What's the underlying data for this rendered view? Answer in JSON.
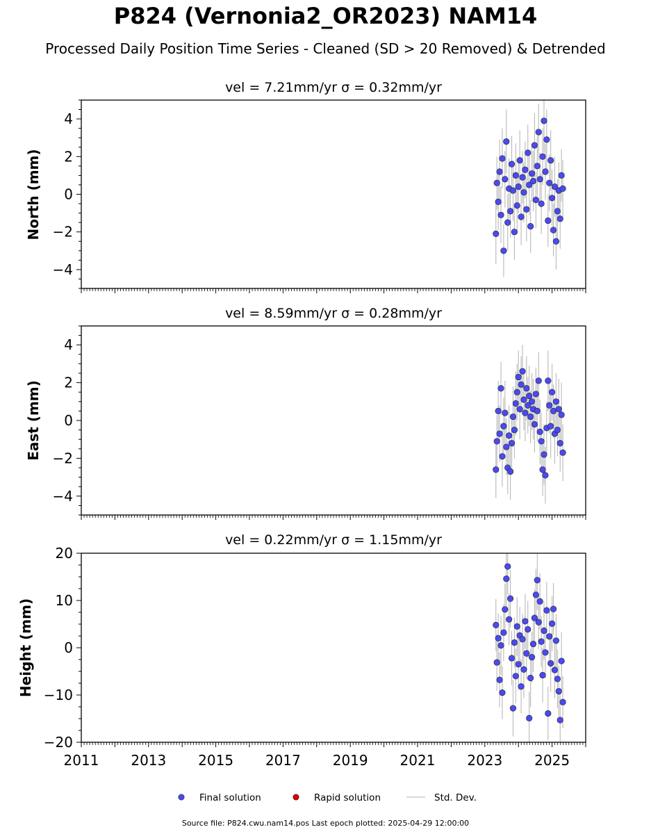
{
  "title": "P824 (Vernonia2_OR2023) NAM14",
  "subtitle": "Processed Daily Position Time Series - Cleaned (SD > 20 Removed) & Detrended",
  "footer": "Source file: P824.cwu.nam14.pos  Last epoch plotted: 2025-04-29 12:00:00",
  "legend": {
    "final": "Final solution",
    "rapid": "Rapid solution",
    "stddev": "Std. Dev."
  },
  "colors": {
    "final": "#4a4af0",
    "rapid": "#dd0000",
    "stddev": "#9a9a9a"
  },
  "chart_data": [
    {
      "type": "scatter",
      "title": "vel = 7.21mm/yr   σ = 0.32mm/yr",
      "ylabel": "North (mm)",
      "xlim": [
        2011,
        2026
      ],
      "ylim": [
        -5,
        5
      ],
      "yticks": [
        -4,
        -2,
        0,
        2,
        4
      ],
      "ytick_labels": [
        "−4",
        "−2",
        "0",
        "2",
        "4"
      ],
      "x_tick_labels_shown": false,
      "series": [
        {
          "kind": "final",
          "x": [
            2023.33,
            2023.36,
            2023.4,
            2023.44,
            2023.48,
            2023.52,
            2023.56,
            2023.6,
            2023.64,
            2023.68,
            2023.72,
            2023.76,
            2023.8,
            2023.84,
            2023.88,
            2023.92,
            2023.96,
            2024.0,
            2024.04,
            2024.08,
            2024.12,
            2024.16,
            2024.2,
            2024.24,
            2024.28,
            2024.32,
            2024.36,
            2024.4,
            2024.44,
            2024.48,
            2024.52,
            2024.56,
            2024.6,
            2024.64,
            2024.68,
            2024.72,
            2024.76,
            2024.8,
            2024.84,
            2024.88,
            2024.92,
            2024.96,
            2025.0,
            2025.04,
            2025.08,
            2025.12,
            2025.16,
            2025.2,
            2025.24,
            2025.28,
            2025.32
          ],
          "y": [
            -2.1,
            0.6,
            -0.4,
            1.2,
            -1.1,
            1.9,
            -3.0,
            0.8,
            2.8,
            -1.5,
            0.3,
            -0.9,
            1.6,
            0.2,
            -2.0,
            1.0,
            -0.6,
            0.4,
            1.8,
            -1.2,
            0.9,
            0.1,
            1.3,
            -0.8,
            2.2,
            0.5,
            -1.7,
            1.1,
            0.7,
            2.6,
            -0.3,
            1.5,
            3.3,
            0.8,
            -0.5,
            2.0,
            3.9,
            1.2,
            2.9,
            -1.4,
            0.6,
            1.8,
            -0.2,
            -1.9,
            0.4,
            -2.5,
            -0.9,
            0.2,
            -1.3,
            1.0,
            0.3
          ],
          "err": [
            1.6,
            1.4,
            1.5,
            1.7,
            1.5,
            1.6,
            1.4,
            1.5,
            1.7,
            1.5,
            1.6,
            1.4,
            1.5,
            1.6,
            1.5,
            1.7,
            1.5,
            1.4,
            1.6,
            1.5,
            1.4,
            1.6,
            1.5,
            1.7,
            1.5,
            1.6,
            1.4,
            1.5,
            1.6,
            1.7,
            1.5,
            1.6,
            1.5,
            1.4,
            1.6,
            1.5,
            1.7,
            1.5,
            1.6,
            1.4,
            1.5,
            1.6,
            1.5,
            1.4,
            1.6,
            1.5,
            1.7,
            1.5,
            1.6,
            1.4,
            1.5
          ]
        }
      ]
    },
    {
      "type": "scatter",
      "title": "vel = 8.59mm/yr   σ = 0.28mm/yr",
      "ylabel": "East (mm)",
      "xlim": [
        2011,
        2026
      ],
      "ylim": [
        -5,
        5
      ],
      "yticks": [
        -4,
        -2,
        0,
        2,
        4
      ],
      "ytick_labels": [
        "−4",
        "−2",
        "0",
        "2",
        "4"
      ],
      "x_tick_labels_shown": false,
      "series": [
        {
          "kind": "final",
          "x": [
            2023.33,
            2023.36,
            2023.4,
            2023.44,
            2023.48,
            2023.52,
            2023.56,
            2023.6,
            2023.64,
            2023.68,
            2023.72,
            2023.76,
            2023.8,
            2023.84,
            2023.88,
            2023.92,
            2023.96,
            2024.0,
            2024.04,
            2024.08,
            2024.12,
            2024.16,
            2024.2,
            2024.24,
            2024.28,
            2024.32,
            2024.36,
            2024.4,
            2024.44,
            2024.48,
            2024.52,
            2024.56,
            2024.6,
            2024.64,
            2024.68,
            2024.72,
            2024.76,
            2024.8,
            2024.84,
            2024.88,
            2024.92,
            2024.96,
            2025.0,
            2025.04,
            2025.08,
            2025.12,
            2025.16,
            2025.2,
            2025.24,
            2025.28,
            2025.32
          ],
          "y": [
            -2.6,
            -1.1,
            0.5,
            -0.7,
            1.7,
            -1.9,
            -0.3,
            0.4,
            -1.4,
            -2.5,
            -0.8,
            -2.7,
            -1.2,
            0.2,
            -0.5,
            0.9,
            1.5,
            2.3,
            0.6,
            1.9,
            2.6,
            1.1,
            0.4,
            1.7,
            0.8,
            1.3,
            0.2,
            1.0,
            0.6,
            -0.2,
            1.4,
            0.5,
            2.1,
            -0.6,
            -1.1,
            -2.6,
            -1.8,
            -2.9,
            -0.4,
            2.1,
            0.8,
            -0.3,
            1.5,
            0.5,
            -0.7,
            1.0,
            -0.5,
            0.6,
            -1.2,
            0.3,
            -1.7
          ],
          "err": [
            1.5,
            1.4,
            1.6,
            1.5,
            1.4,
            1.6,
            1.5,
            1.7,
            1.5,
            1.4,
            1.6,
            1.5,
            1.4,
            1.6,
            1.5,
            1.7,
            1.5,
            1.4,
            1.6,
            1.5,
            1.4,
            1.6,
            1.5,
            1.7,
            1.5,
            1.6,
            1.4,
            1.5,
            1.6,
            1.5,
            1.4,
            1.6,
            1.5,
            1.7,
            1.5,
            1.4,
            1.6,
            1.5,
            1.4,
            1.6,
            1.5,
            1.7,
            1.5,
            1.4,
            1.6,
            1.5,
            1.4,
            1.6,
            1.5,
            1.7,
            1.5
          ]
        }
      ]
    },
    {
      "type": "scatter",
      "title": "vel = 0.22mm/yr   σ = 1.15mm/yr",
      "ylabel": "Height (mm)",
      "xlim": [
        2011,
        2026
      ],
      "ylim": [
        -20,
        20
      ],
      "yticks": [
        -20,
        -10,
        0,
        10,
        20
      ],
      "ytick_labels": [
        "−20",
        "−10",
        "0",
        "10",
        "20"
      ],
      "x_tick_labels_shown": true,
      "xticks": [
        2011,
        2013,
        2015,
        2017,
        2019,
        2021,
        2023,
        2025
      ],
      "xtick_labels": [
        "2011",
        "2013",
        "2015",
        "2017",
        "2019",
        "2021",
        "2023",
        "2025"
      ],
      "series": [
        {
          "kind": "final",
          "x": [
            2023.33,
            2023.36,
            2023.4,
            2023.44,
            2023.48,
            2023.52,
            2023.56,
            2023.6,
            2023.64,
            2023.68,
            2023.72,
            2023.76,
            2023.8,
            2023.84,
            2023.88,
            2023.92,
            2023.96,
            2024.0,
            2024.04,
            2024.08,
            2024.12,
            2024.16,
            2024.2,
            2024.24,
            2024.28,
            2024.32,
            2024.36,
            2024.4,
            2024.44,
            2024.48,
            2024.52,
            2024.56,
            2024.6,
            2024.64,
            2024.68,
            2024.72,
            2024.76,
            2024.8,
            2024.84,
            2024.88,
            2024.92,
            2024.96,
            2025.0,
            2025.04,
            2025.08,
            2025.12,
            2025.16,
            2025.2,
            2025.24,
            2025.28,
            2025.32
          ],
          "y": [
            4.8,
            -3.1,
            2.0,
            -6.8,
            0.5,
            -9.5,
            3.2,
            8.1,
            14.6,
            17.2,
            6.0,
            10.4,
            -2.2,
            -12.8,
            1.1,
            -6.0,
            4.5,
            -3.5,
            2.6,
            -8.2,
            1.8,
            -4.6,
            5.6,
            -1.2,
            3.9,
            -14.9,
            -6.4,
            -2.0,
            0.8,
            6.3,
            11.2,
            14.3,
            5.4,
            9.8,
            1.3,
            -5.8,
            3.6,
            -1.0,
            7.9,
            -13.9,
            2.4,
            -3.3,
            5.1,
            8.2,
            -4.7,
            1.5,
            -6.6,
            -9.2,
            -15.3,
            -2.8,
            -11.5
          ],
          "err": [
            5.5,
            6.0,
            5.2,
            5.8,
            6.2,
            5.6,
            6.0,
            5.4,
            6.3,
            5.9,
            5.5,
            6.1,
            5.7,
            6.0,
            5.3,
            5.8,
            6.2,
            5.5,
            6.0,
            5.7,
            5.4,
            6.1,
            5.8,
            5.5,
            6.0,
            5.6,
            6.2,
            5.4,
            5.9,
            6.1,
            5.5,
            6.3,
            5.7,
            6.0,
            5.4,
            5.8,
            6.2,
            5.5,
            6.0,
            5.7,
            5.4,
            6.1,
            5.8,
            5.5,
            6.0,
            5.6,
            6.2,
            5.4,
            5.9,
            6.1,
            5.5
          ]
        }
      ]
    }
  ]
}
